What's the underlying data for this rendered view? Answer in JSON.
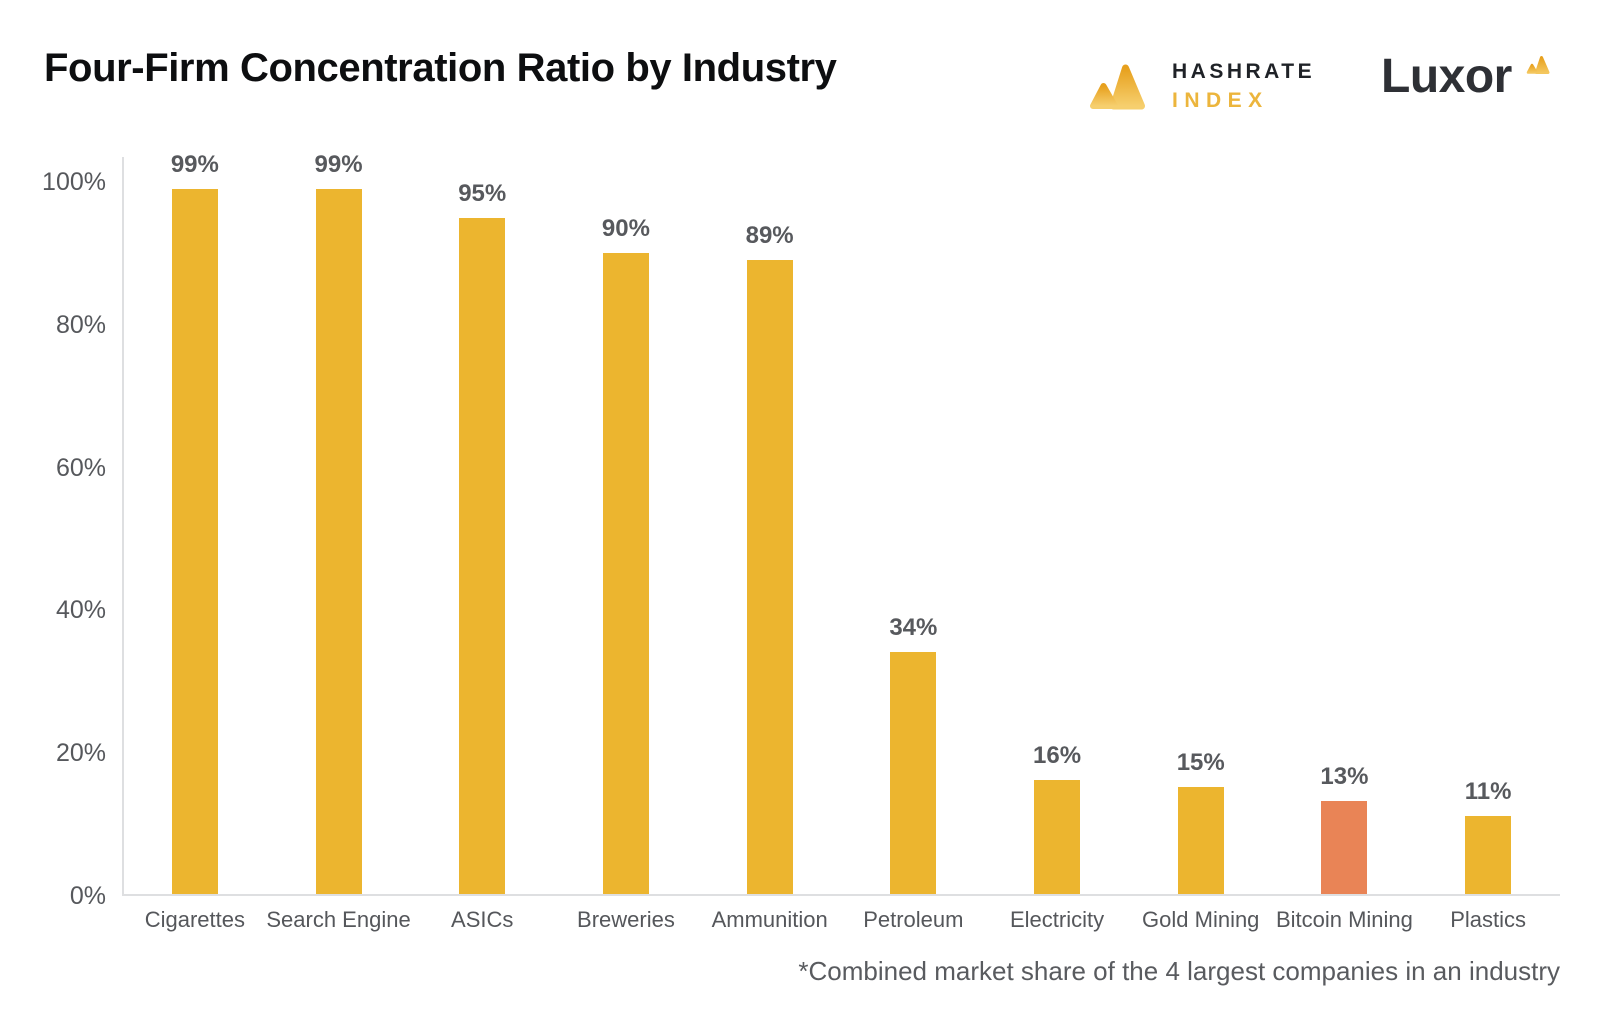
{
  "header": {
    "title": "Four-Firm Concentration Ratio by Industry",
    "hashrate_logo": {
      "line1": "HASHRATE",
      "line2": "INDEX"
    },
    "luxor_logo": {
      "text": "Luxor"
    }
  },
  "chart_data": {
    "type": "bar",
    "title": "Four-Firm Concentration Ratio by Industry",
    "categories": [
      "Cigarettes",
      "Search Engine",
      "ASICs",
      "Breweries",
      "Ammunition",
      "Petroleum",
      "Electricity",
      "Gold Mining",
      "Bitcoin Mining",
      "Plastics"
    ],
    "values": [
      99,
      99,
      95,
      90,
      89,
      34,
      16,
      15,
      13,
      11
    ],
    "value_labels": [
      "99%",
      "99%",
      "95%",
      "90%",
      "89%",
      "34%",
      "16%",
      "15%",
      "13%",
      "11%"
    ],
    "highlight_index": 8,
    "highlight_category": "Bitcoin Mining",
    "xlabel": "",
    "ylabel": "",
    "ylim": [
      0,
      100
    ],
    "y_tick_values": [
      100,
      80,
      60,
      40,
      20,
      0
    ],
    "y_tick_labels": [
      "100%",
      "80%",
      "60%",
      "40%",
      "20%",
      "0%"
    ],
    "grid": false,
    "legend": false,
    "bar_color": "#ECB52F",
    "highlight_color": "#E98456"
  },
  "footnote": "*Combined market share of the 4 largest companies in an industry",
  "colors": {
    "background": "#FFFFFF",
    "title_text": "#0D0E10",
    "axis_line": "#DEDFE1",
    "axis_label": "#56585C",
    "value_label": "#57595D",
    "bar": "#ECB52F",
    "bar_highlight": "#E98456",
    "hashrate_text": "#1F2227",
    "hashrate_gold": "#ECB53C",
    "luxor_text": "#2E3035"
  }
}
